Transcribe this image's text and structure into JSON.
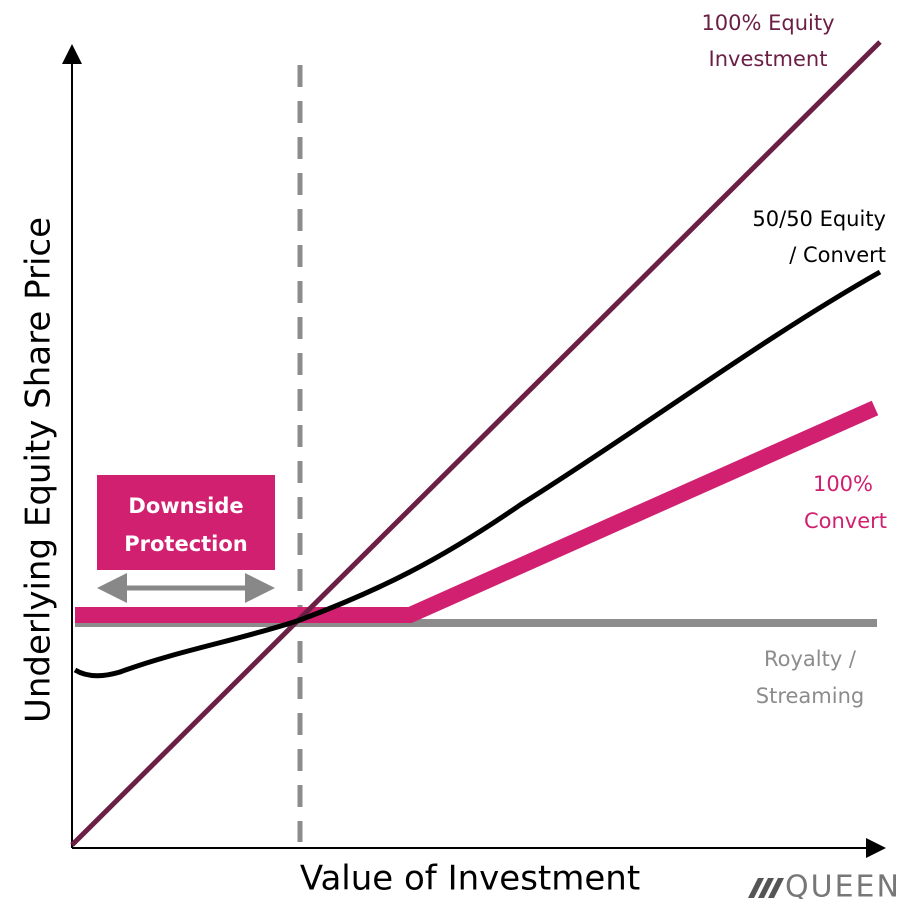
{
  "axes": {
    "x_label": "Value of Investment",
    "y_label": "Underlying Equity Share Price"
  },
  "line_labels": {
    "equity": [
      "100% Equity",
      "Investment"
    ],
    "blend": [
      "50/50 Equity",
      "/ Convert"
    ],
    "convert": [
      "100%",
      "Convert"
    ],
    "royalty": [
      "Royalty /",
      "Streaming"
    ]
  },
  "callout": [
    "Downside",
    "Protection"
  ],
  "logo": "QUEEN"
}
